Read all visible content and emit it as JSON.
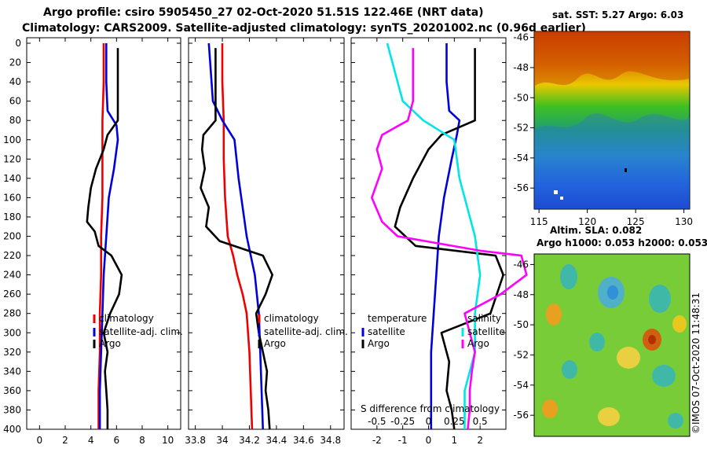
{
  "titles": {
    "line1": "Argo profile: csiro 5905450_27 02-Oct-2020 51.51S 122.46E (NRT data)",
    "line2": "Climatology: CARS2009. Satellite-adjusted climatology: synTS_20201002.nc (0.96d earlier)"
  },
  "depth_ticks": [
    "0",
    "20",
    "40",
    "60",
    "80",
    "100",
    "120",
    "140",
    "160",
    "180",
    "200",
    "220",
    "240",
    "260",
    "280",
    "300",
    "320",
    "340",
    "360",
    "380",
    "400"
  ],
  "colors": {
    "climatology": "#ee0000",
    "satellite": "#0000dd",
    "argo": "#000000",
    "sat_temp": "#00e5e5",
    "sat_sal": "#ff00ff"
  },
  "chart_data": [
    {
      "type": "line",
      "name": "temperature-profile",
      "xlim": [
        -1,
        11
      ],
      "ylim": [
        400,
        0
      ],
      "x_ticks": [
        "0",
        "2",
        "4",
        "6",
        "8",
        "10"
      ],
      "legend": [
        "climatology",
        "satellite-adj. clim.",
        "Argo"
      ],
      "series": [
        {
          "name": "climatology",
          "depth": [
            0,
            40,
            80,
            120,
            160,
            200,
            240,
            280,
            320,
            360,
            400
          ],
          "values": [
            5.0,
            5.0,
            4.9,
            4.9,
            4.9,
            4.8,
            4.8,
            4.7,
            4.7,
            4.6,
            4.6
          ]
        },
        {
          "name": "satellite-adj. clim.",
          "depth": [
            0,
            40,
            70,
            85,
            100,
            130,
            160,
            200,
            240,
            280,
            320,
            360,
            400
          ],
          "values": [
            5.2,
            5.2,
            5.3,
            6.0,
            6.1,
            5.8,
            5.4,
            5.2,
            5.0,
            4.9,
            4.8,
            4.7,
            4.7
          ]
        },
        {
          "name": "Argo",
          "depth": [
            5,
            20,
            60,
            80,
            95,
            110,
            130,
            150,
            170,
            185,
            195,
            210,
            220,
            240,
            260,
            280,
            300,
            320,
            340,
            360,
            380,
            400
          ],
          "values": [
            6.1,
            6.1,
            6.1,
            6.1,
            5.3,
            5.0,
            4.4,
            4.0,
            3.8,
            3.7,
            4.3,
            4.6,
            5.6,
            6.4,
            6.2,
            5.5,
            5.0,
            5.3,
            5.1,
            5.2,
            5.3,
            5.3
          ]
        }
      ]
    },
    {
      "type": "line",
      "name": "salinity-profile",
      "xlim": [
        33.75,
        34.9
      ],
      "ylim": [
        400,
        0
      ],
      "x_ticks": [
        "33.8",
        "34",
        "34.2",
        "34.4",
        "34.6",
        "34.8"
      ],
      "legend": [
        "climatology",
        "satellite-adj. clim.",
        "Argo"
      ],
      "series": [
        {
          "name": "climatology",
          "depth": [
            0,
            40,
            80,
            120,
            160,
            200,
            220,
            240,
            260,
            280,
            320,
            360,
            400
          ],
          "values": [
            34.0,
            34.0,
            34.01,
            34.01,
            34.02,
            34.04,
            34.08,
            34.11,
            34.15,
            34.18,
            34.2,
            34.21,
            34.22
          ]
        },
        {
          "name": "satellite-adj. clim.",
          "depth": [
            0,
            40,
            60,
            80,
            100,
            140,
            180,
            200,
            240,
            280,
            320,
            360,
            400
          ],
          "values": [
            33.9,
            33.92,
            33.93,
            34.0,
            34.09,
            34.12,
            34.16,
            34.18,
            34.24,
            34.27,
            34.28,
            34.29,
            34.3
          ]
        },
        {
          "name": "Argo",
          "depth": [
            5,
            60,
            80,
            95,
            110,
            130,
            150,
            170,
            190,
            205,
            220,
            240,
            260,
            280,
            300,
            320,
            340,
            360,
            380,
            400
          ],
          "values": [
            33.95,
            33.95,
            33.95,
            33.86,
            33.85,
            33.87,
            33.84,
            33.9,
            33.88,
            33.98,
            34.3,
            34.37,
            34.32,
            34.25,
            34.27,
            34.3,
            34.33,
            34.32,
            34.34,
            34.35
          ]
        }
      ]
    },
    {
      "type": "line",
      "name": "difference-from-climatology",
      "xlim": [
        -3,
        3
      ],
      "ylim": [
        400,
        0
      ],
      "x_ticks": [
        "-2",
        "-1",
        "0",
        "1",
        "2"
      ],
      "x_ticks_salinity": [
        "-0.5",
        "-0.25",
        "0",
        "0.25",
        "0.5"
      ],
      "xlabel": "S difference from climatology",
      "legend": {
        "temperature_header": "temperature",
        "salinity_header": "salinity",
        "satellite": "satellite",
        "argo": "Argo"
      },
      "series": [
        {
          "name": "temperature satellite",
          "depth": [
            0,
            40,
            70,
            80,
            95,
            120,
            160,
            200,
            240,
            280,
            320,
            360,
            400
          ],
          "values": [
            0.7,
            0.7,
            0.8,
            1.2,
            1.1,
            0.9,
            0.6,
            0.4,
            0.3,
            0.2,
            0.1,
            0.1,
            0.1
          ]
        },
        {
          "name": "temperature Argo",
          "depth": [
            5,
            60,
            80,
            95,
            110,
            140,
            170,
            190,
            210,
            220,
            240,
            280,
            300,
            330,
            360,
            380,
            400
          ],
          "values": [
            1.8,
            1.8,
            1.8,
            0.5,
            0.0,
            -0.6,
            -1.1,
            -1.3,
            -0.5,
            2.6,
            2.9,
            2.4,
            0.5,
            0.8,
            0.7,
            0.9,
            1.0
          ]
        },
        {
          "name": "salinity satellite",
          "depth": [
            0,
            40,
            60,
            80,
            100,
            140,
            200,
            240,
            280,
            320,
            360,
            400
          ],
          "values": [
            -0.4,
            -0.3,
            -0.25,
            -0.05,
            0.25,
            0.3,
            0.45,
            0.5,
            0.45,
            0.45,
            0.35,
            0.35
          ]
        },
        {
          "name": "salinity Argo",
          "depth": [
            5,
            60,
            80,
            95,
            110,
            130,
            160,
            185,
            200,
            215,
            220,
            240,
            260,
            280,
            300,
            320,
            340,
            360,
            380,
            400
          ],
          "values": [
            -0.15,
            -0.15,
            -0.2,
            -0.45,
            -0.5,
            -0.45,
            -0.55,
            -0.45,
            -0.3,
            0.5,
            0.9,
            0.95,
            0.7,
            0.35,
            0.4,
            0.45,
            0.42,
            0.4,
            0.4,
            0.38
          ]
        }
      ]
    },
    {
      "type": "heatmap",
      "name": "sst-map",
      "title": "sat. SST: 5.27 Argo: 6.03",
      "x_ticks": [
        "115",
        "120",
        "125",
        "130"
      ],
      "y_ticks": [
        "-46",
        "-48",
        "-50",
        "-52",
        "-54",
        "-56"
      ]
    },
    {
      "type": "heatmap",
      "name": "sla-map",
      "title_line1": "Altim. SLA: 0.082",
      "title_line2": "Argo h1000: 0.053 h2000: 0.053",
      "y_ticks": [
        "-46",
        "-48",
        "-50",
        "-52",
        "-54",
        "-56"
      ]
    }
  ],
  "footer": "©IMOS 07-Oct-2020 11:48:31"
}
